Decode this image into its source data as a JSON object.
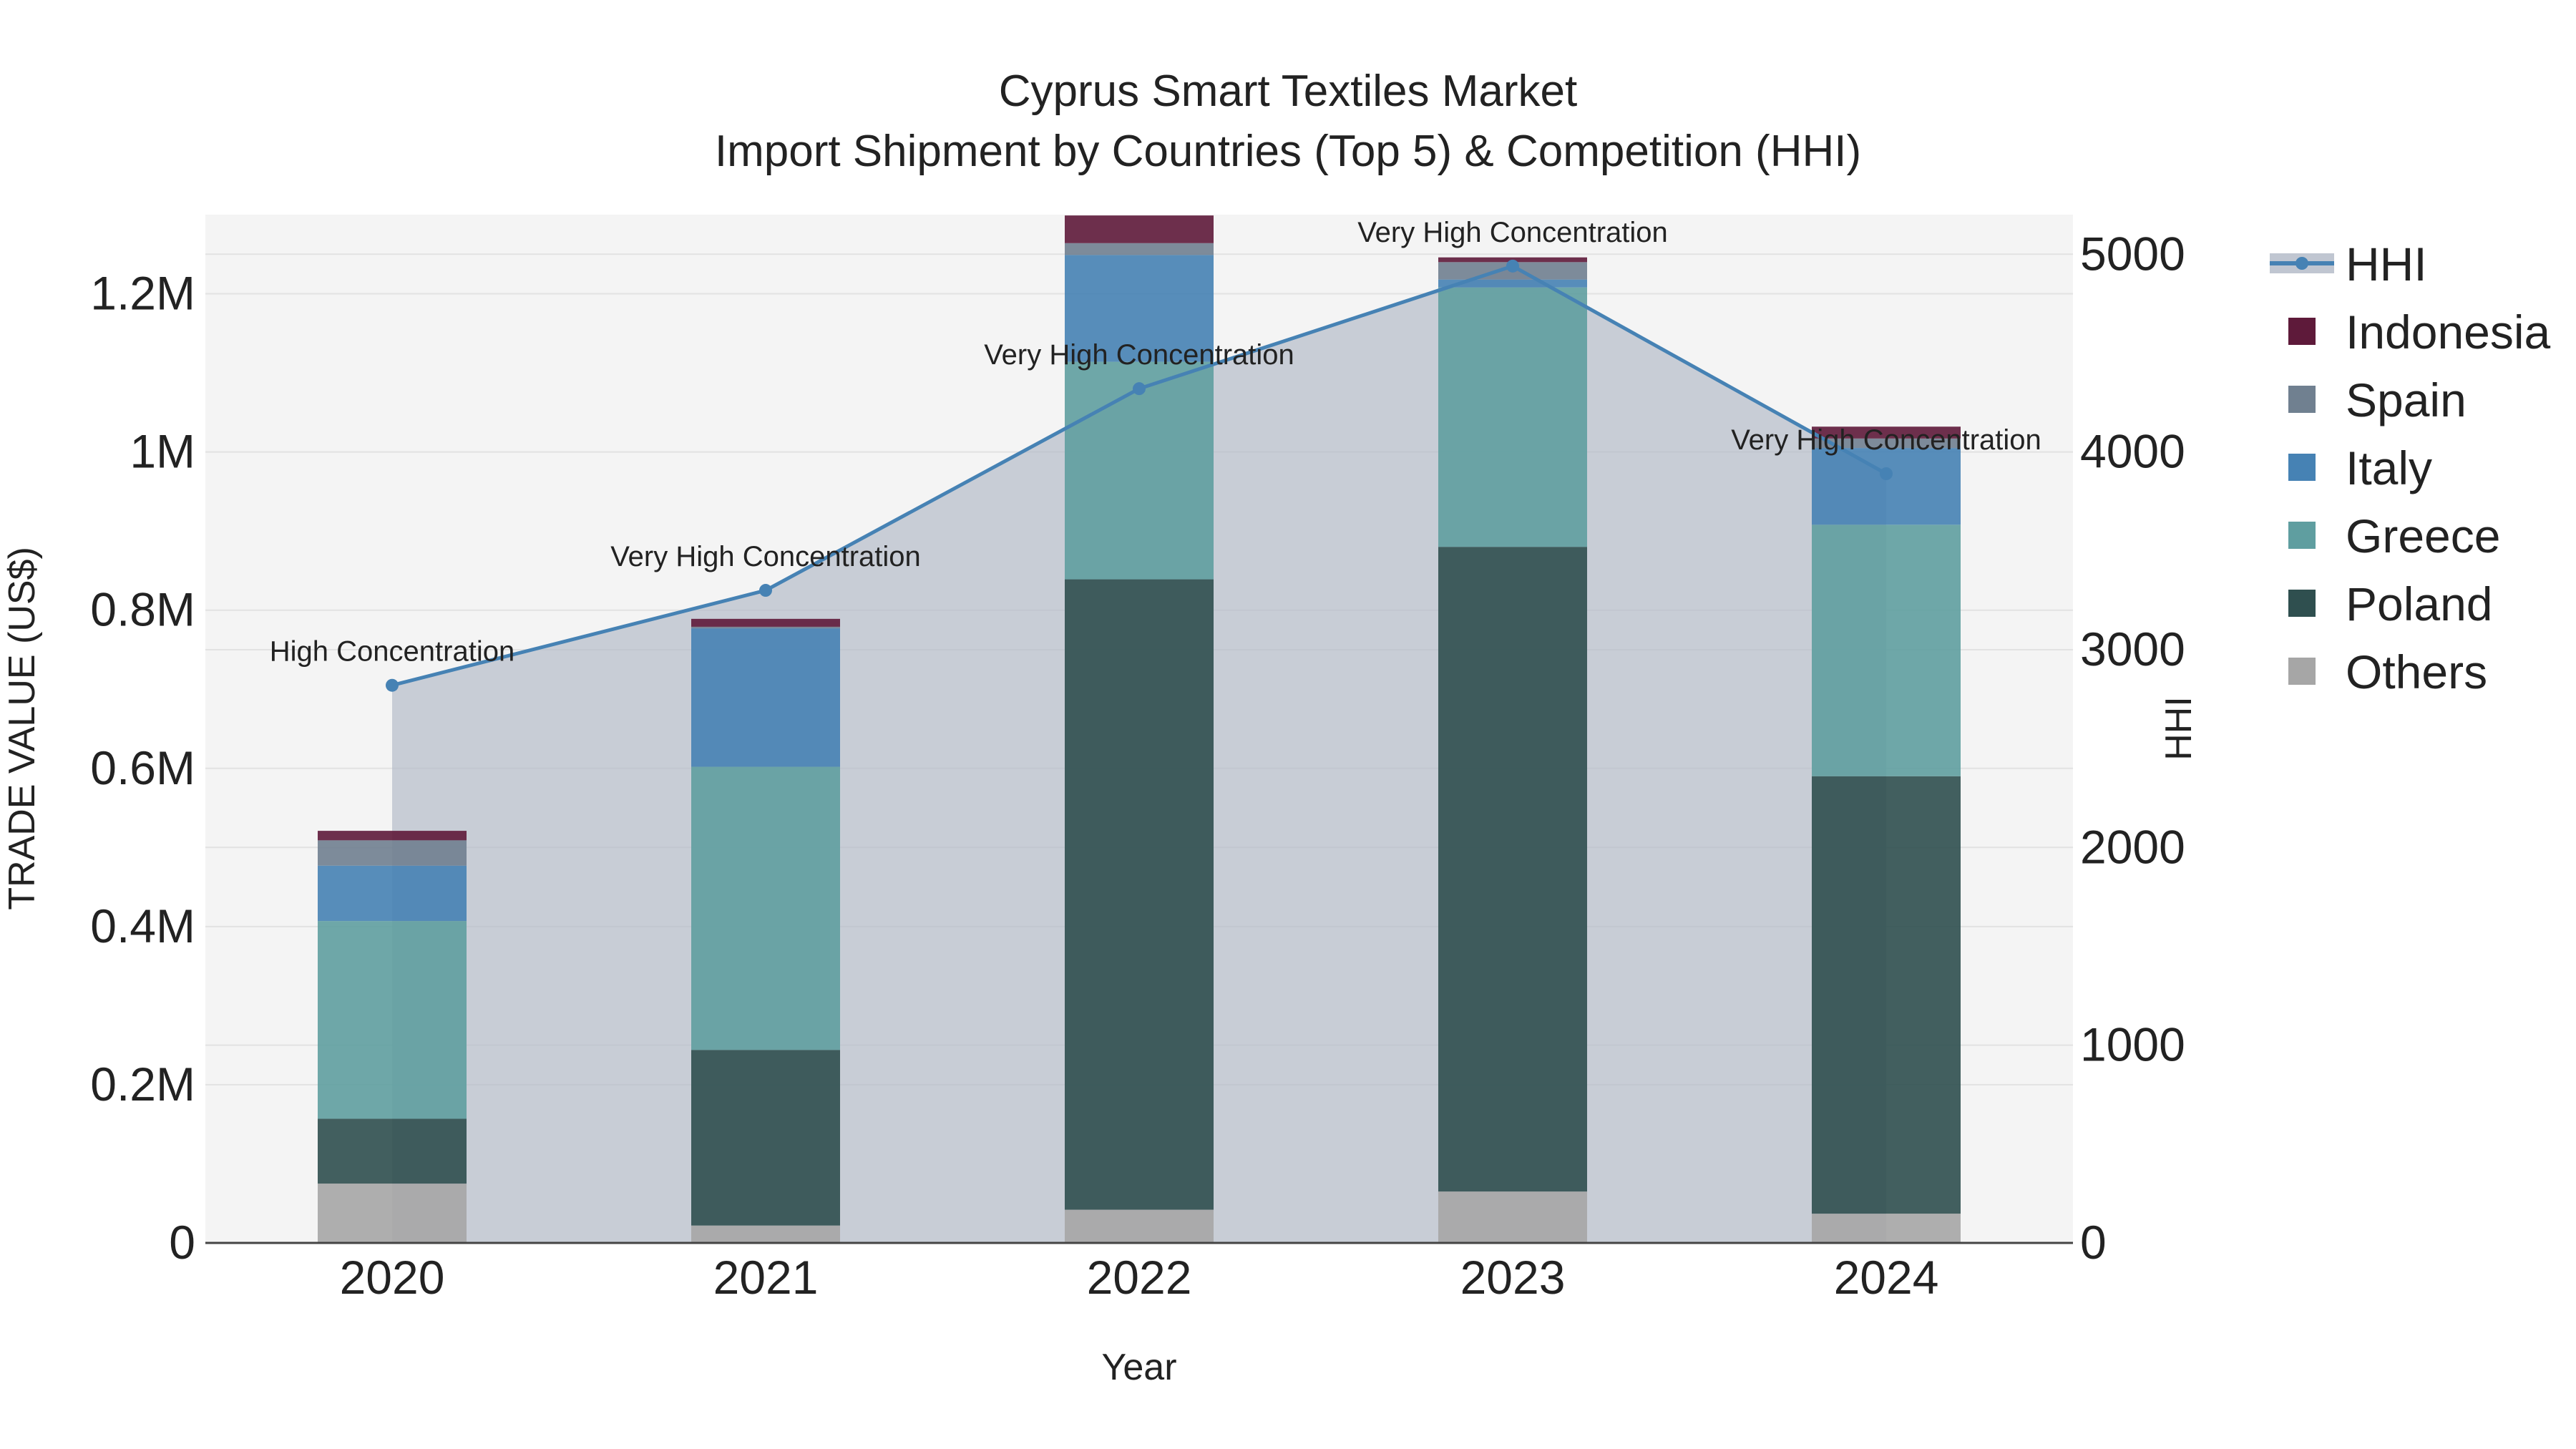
{
  "chart_data": {
    "type": "bar",
    "title_line1": "Cyprus Smart Textiles Market",
    "title_line2": "Import Shipment by Countries (Top 5) & Competition (HHI)",
    "xlabel": "Year",
    "ylabel": "TRADE VALUE (US$)",
    "y2label": "HHI",
    "categories": [
      "2020",
      "2021",
      "2022",
      "2023",
      "2024"
    ],
    "ylim": [
      0,
      1300000
    ],
    "y_ticks": [
      0,
      200000,
      400000,
      600000,
      800000,
      1000000,
      1200000
    ],
    "y_tick_labels": [
      "0",
      "0.2M",
      "0.4M",
      "0.6M",
      "0.8M",
      "1M",
      "1.2M"
    ],
    "y2lim": [
      0,
      5200
    ],
    "y2_ticks": [
      0,
      1000,
      2000,
      3000,
      4000,
      5000
    ],
    "y2_tick_labels": [
      "0",
      "1000",
      "2000",
      "3000",
      "4000",
      "5000"
    ],
    "series": [
      {
        "name": "Others",
        "color": "#a6a6a6",
        "values": [
          75000,
          22000,
          42000,
          65000,
          37000
        ]
      },
      {
        "name": "Poland",
        "color": "#2f4f4f",
        "values": [
          82000,
          222000,
          797000,
          815000,
          553000
        ]
      },
      {
        "name": "Greece",
        "color": "#5f9ea0",
        "values": [
          250000,
          358000,
          275000,
          328000,
          318000
        ]
      },
      {
        "name": "Italy",
        "color": "#4682b4",
        "values": [
          70000,
          175000,
          135000,
          10000,
          97000
        ]
      },
      {
        "name": "Spain",
        "color": "#708090",
        "values": [
          32000,
          2000,
          15000,
          22000,
          12000
        ]
      },
      {
        "name": "Indonesia",
        "color": "#5e1a3a",
        "values": [
          12000,
          10000,
          35000,
          6000,
          15000
        ]
      }
    ],
    "hhi": {
      "name": "HHI",
      "color": "#4682b4",
      "values": [
        2820,
        3300,
        4320,
        4940,
        3890
      ],
      "labels": [
        "High Concentration",
        "Very High Concentration",
        "Very High Concentration",
        "Very High Concentration",
        "Very High Concentration"
      ]
    },
    "legend": [
      "HHI",
      "Indonesia",
      "Spain",
      "Italy",
      "Greece",
      "Poland",
      "Others"
    ]
  }
}
